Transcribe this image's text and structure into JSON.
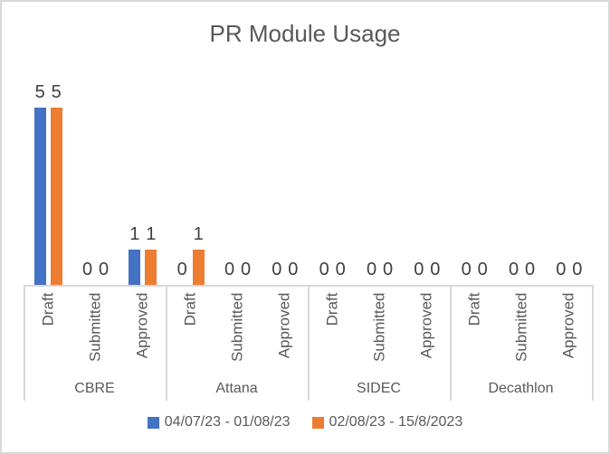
{
  "chart_data": {
    "type": "bar",
    "title": "PR Module Usage",
    "groups": [
      "CBRE",
      "Attana",
      "SIDEC",
      "Decathlon"
    ],
    "subcategories": [
      "Draft",
      "Submitted",
      "Approved"
    ],
    "series": [
      {
        "name": "04/07/23 - 01/08/23",
        "color": "#4472C4",
        "values": [
          [
            5,
            0,
            1
          ],
          [
            0,
            0,
            0
          ],
          [
            0,
            0,
            0
          ],
          [
            0,
            0,
            0
          ]
        ]
      },
      {
        "name": "02/08/23 - 15/8/2023",
        "color": "#ED7D31",
        "values": [
          [
            5,
            0,
            1
          ],
          [
            1,
            0,
            0
          ],
          [
            0,
            0,
            0
          ],
          [
            0,
            0,
            0
          ]
        ]
      }
    ],
    "ylim": [
      0,
      5
    ],
    "gridlines": false,
    "value_axis_visible": false,
    "data_labels": true,
    "legend_position": "bottom",
    "colors": {
      "title_text": "#595959",
      "axis_text": "#595959",
      "data_label_text": "#404040",
      "axis_line": "#D9D9D9",
      "chart_border": "#D9D9D9",
      "background": "#FFFFFF"
    }
  }
}
